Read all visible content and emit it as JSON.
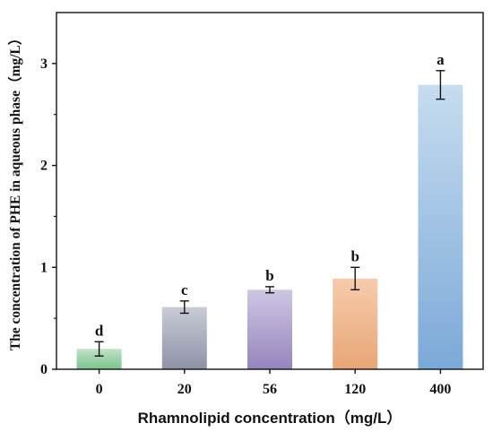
{
  "chart_data": {
    "type": "bar",
    "title": "",
    "xlabel": "Rhamnolipid concentration（mg/L）",
    "ylabel": "The concentration of PHE in aqueous phase（mg/L）",
    "categories": [
      "0",
      "20",
      "56",
      "120",
      "400"
    ],
    "values": [
      0.2,
      0.61,
      0.78,
      0.89,
      2.79
    ],
    "errors": [
      0.07,
      0.06,
      0.03,
      0.11,
      0.14
    ],
    "significance": [
      "d",
      "c",
      "b",
      "b",
      "a"
    ],
    "colors": [
      [
        "#bfe3c6",
        "#7cc28c"
      ],
      [
        "#c9cbd6",
        "#8e92a6"
      ],
      [
        "#cfc6e3",
        "#9486bd"
      ],
      [
        "#f6ccac",
        "#e9a677"
      ],
      [
        "#c6dcef",
        "#7ba9d8"
      ]
    ],
    "ylim": [
      0,
      3.5
    ],
    "yticks": [
      0,
      1,
      2,
      3
    ],
    "grid": false
  }
}
